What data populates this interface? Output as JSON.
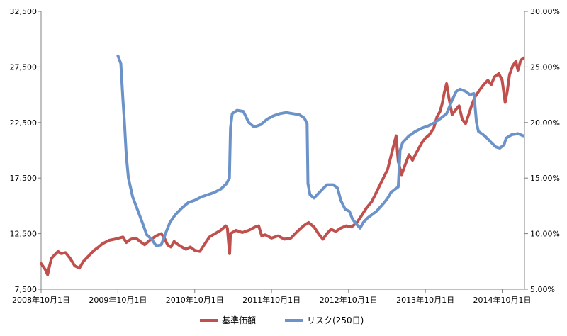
{
  "chart_data": {
    "type": "line",
    "x_ticks": [
      "2008年10月1日",
      "2009年10月1日",
      "2010年10月1日",
      "2011年10月1日",
      "2012年10月1日",
      "2013年10月1日",
      "2014年10月1日"
    ],
    "xlim": [
      "2008-10-01",
      "2015-01-15"
    ],
    "y_left": {
      "ticks": [
        "7,500",
        "12,500",
        "17,500",
        "22,500",
        "27,500",
        "32,500"
      ],
      "lim": [
        7500,
        32500
      ]
    },
    "y_right": {
      "ticks": [
        "5.00%",
        "10.00%",
        "15.00%",
        "20.00%",
        "25.00%",
        "30.00%"
      ],
      "lim": [
        5,
        30
      ]
    },
    "grid": false,
    "legend_position": "bottom",
    "series": [
      {
        "name": "基準価額",
        "axis": "left",
        "color": "#c0504d",
        "points": [
          [
            "2008-10-01",
            9800
          ],
          [
            "2008-10-20",
            9300
          ],
          [
            "2008-11-01",
            8800
          ],
          [
            "2008-11-10",
            9600
          ],
          [
            "2008-11-20",
            10300
          ],
          [
            "2008-12-05",
            10600
          ],
          [
            "2008-12-20",
            10900
          ],
          [
            "2009-01-05",
            10700
          ],
          [
            "2009-01-25",
            10800
          ],
          [
            "2009-02-15",
            10300
          ],
          [
            "2009-03-10",
            9600
          ],
          [
            "2009-04-01",
            9400
          ],
          [
            "2009-04-20",
            10000
          ],
          [
            "2009-05-15",
            10500
          ],
          [
            "2009-06-10",
            11000
          ],
          [
            "2009-07-01",
            11300
          ],
          [
            "2009-07-20",
            11600
          ],
          [
            "2009-08-20",
            11900
          ],
          [
            "2009-09-15",
            12000
          ],
          [
            "2009-10-05",
            12100
          ],
          [
            "2009-10-25",
            12200
          ],
          [
            "2009-11-10",
            11700
          ],
          [
            "2009-12-01",
            12000
          ],
          [
            "2009-12-25",
            12100
          ],
          [
            "2010-01-15",
            11800
          ],
          [
            "2010-02-05",
            11500
          ],
          [
            "2010-03-01",
            11900
          ],
          [
            "2010-04-01",
            12300
          ],
          [
            "2010-04-25",
            12500
          ],
          [
            "2010-05-10",
            12100
          ],
          [
            "2010-05-25",
            11500
          ],
          [
            "2010-06-10",
            11300
          ],
          [
            "2010-06-25",
            11800
          ],
          [
            "2010-07-15",
            11500
          ],
          [
            "2010-08-01",
            11300
          ],
          [
            "2010-08-20",
            11100
          ],
          [
            "2010-09-10",
            11300
          ],
          [
            "2010-10-01",
            11000
          ],
          [
            "2010-10-25",
            10900
          ],
          [
            "2010-11-15",
            11500
          ],
          [
            "2010-12-10",
            12200
          ],
          [
            "2011-01-05",
            12500
          ],
          [
            "2011-02-01",
            12800
          ],
          [
            "2011-02-25",
            13200
          ],
          [
            "2011-03-05",
            13000
          ],
          [
            "2011-03-12",
            11500
          ],
          [
            "2011-03-16",
            10700
          ],
          [
            "2011-03-20",
            12500
          ],
          [
            "2011-04-15",
            12800
          ],
          [
            "2011-05-15",
            12600
          ],
          [
            "2011-06-15",
            12800
          ],
          [
            "2011-07-15",
            13100
          ],
          [
            "2011-08-01",
            13200
          ],
          [
            "2011-08-15",
            12300
          ],
          [
            "2011-09-01",
            12400
          ],
          [
            "2011-10-01",
            12100
          ],
          [
            "2011-11-01",
            12300
          ],
          [
            "2011-12-01",
            12000
          ],
          [
            "2012-01-01",
            12100
          ],
          [
            "2012-02-01",
            12700
          ],
          [
            "2012-03-01",
            13200
          ],
          [
            "2012-03-25",
            13500
          ],
          [
            "2012-04-20",
            13100
          ],
          [
            "2012-05-15",
            12400
          ],
          [
            "2012-06-01",
            12000
          ],
          [
            "2012-06-20",
            12500
          ],
          [
            "2012-07-10",
            12900
          ],
          [
            "2012-08-01",
            12700
          ],
          [
            "2012-08-25",
            13000
          ],
          [
            "2012-09-20",
            13200
          ],
          [
            "2012-10-15",
            13100
          ],
          [
            "2012-11-10",
            13500
          ],
          [
            "2012-12-01",
            14100
          ],
          [
            "2012-12-25",
            14800
          ],
          [
            "2013-01-20",
            15400
          ],
          [
            "2013-02-15",
            16400
          ],
          [
            "2013-03-10",
            17300
          ],
          [
            "2013-04-05",
            18300
          ],
          [
            "2013-04-25",
            19800
          ],
          [
            "2013-05-15",
            21300
          ],
          [
            "2013-05-25",
            19000
          ],
          [
            "2013-06-10",
            17800
          ],
          [
            "2013-06-25",
            18600
          ],
          [
            "2013-07-15",
            19600
          ],
          [
            "2013-08-01",
            19100
          ],
          [
            "2013-08-20",
            19800
          ],
          [
            "2013-09-15",
            20700
          ],
          [
            "2013-10-01",
            21100
          ],
          [
            "2013-10-20",
            21400
          ],
          [
            "2013-11-10",
            22000
          ],
          [
            "2013-11-25",
            23000
          ],
          [
            "2013-12-10",
            23500
          ],
          [
            "2013-12-20",
            24200
          ],
          [
            "2013-12-30",
            25200
          ],
          [
            "2014-01-10",
            26000
          ],
          [
            "2014-01-20",
            24800
          ],
          [
            "2014-02-05",
            23200
          ],
          [
            "2014-02-20",
            23600
          ],
          [
            "2014-03-10",
            24000
          ],
          [
            "2014-03-25",
            22800
          ],
          [
            "2014-04-10",
            22400
          ],
          [
            "2014-04-25",
            23200
          ],
          [
            "2014-05-10",
            24100
          ],
          [
            "2014-05-25",
            24800
          ],
          [
            "2014-06-15",
            25400
          ],
          [
            "2014-07-05",
            25900
          ],
          [
            "2014-07-25",
            26300
          ],
          [
            "2014-08-10",
            25900
          ],
          [
            "2014-08-25",
            26600
          ],
          [
            "2014-09-15",
            26900
          ],
          [
            "2014-10-01",
            26300
          ],
          [
            "2014-10-15",
            24300
          ],
          [
            "2014-10-25",
            25300
          ],
          [
            "2014-11-05",
            26800
          ],
          [
            "2014-11-20",
            27600
          ],
          [
            "2014-12-05",
            28000
          ],
          [
            "2014-12-15",
            27200
          ],
          [
            "2014-12-28",
            28100
          ],
          [
            "2015-01-10",
            28300
          ]
        ]
      },
      {
        "name": "リスク(250日)",
        "axis": "right",
        "color": "#6b93c9",
        "points": [
          [
            "2009-10-01",
            26.0
          ],
          [
            "2009-10-15",
            25.3
          ],
          [
            "2009-10-25",
            22.0
          ],
          [
            "2009-11-01",
            20.0
          ],
          [
            "2009-11-10",
            17.0
          ],
          [
            "2009-11-20",
            15.0
          ],
          [
            "2009-12-10",
            13.3
          ],
          [
            "2010-01-05",
            12.0
          ],
          [
            "2010-01-25",
            11.0
          ],
          [
            "2010-02-15",
            9.9
          ],
          [
            "2010-03-10",
            9.5
          ],
          [
            "2010-04-01",
            8.9
          ],
          [
            "2010-04-25",
            9.0
          ],
          [
            "2010-05-15",
            10.0
          ],
          [
            "2010-06-05",
            11.0
          ],
          [
            "2010-07-01",
            11.7
          ],
          [
            "2010-08-01",
            12.3
          ],
          [
            "2010-09-01",
            12.8
          ],
          [
            "2010-10-01",
            13.0
          ],
          [
            "2010-11-01",
            13.3
          ],
          [
            "2010-12-01",
            13.5
          ],
          [
            "2011-01-01",
            13.7
          ],
          [
            "2011-02-01",
            14.0
          ],
          [
            "2011-03-01",
            14.5
          ],
          [
            "2011-03-15",
            15.0
          ],
          [
            "2011-03-20",
            19.5
          ],
          [
            "2011-03-28",
            20.8
          ],
          [
            "2011-04-20",
            21.1
          ],
          [
            "2011-05-20",
            21.0
          ],
          [
            "2011-06-15",
            20.0
          ],
          [
            "2011-07-10",
            19.6
          ],
          [
            "2011-08-10",
            19.8
          ],
          [
            "2011-09-10",
            20.3
          ],
          [
            "2011-10-10",
            20.6
          ],
          [
            "2011-11-10",
            20.8
          ],
          [
            "2011-12-10",
            20.9
          ],
          [
            "2012-01-10",
            20.8
          ],
          [
            "2012-02-10",
            20.7
          ],
          [
            "2012-03-05",
            20.4
          ],
          [
            "2012-03-18",
            19.9
          ],
          [
            "2012-03-22",
            14.5
          ],
          [
            "2012-04-01",
            13.5
          ],
          [
            "2012-04-20",
            13.2
          ],
          [
            "2012-05-20",
            13.8
          ],
          [
            "2012-06-20",
            14.4
          ],
          [
            "2012-07-20",
            14.4
          ],
          [
            "2012-08-10",
            14.1
          ],
          [
            "2012-08-25",
            13.0
          ],
          [
            "2012-09-15",
            12.2
          ],
          [
            "2012-10-05",
            12.0
          ],
          [
            "2012-10-20",
            11.3
          ],
          [
            "2012-11-10",
            10.8
          ],
          [
            "2012-11-25",
            10.5
          ],
          [
            "2012-12-10",
            11.0
          ],
          [
            "2012-12-30",
            11.4
          ],
          [
            "2013-01-20",
            11.7
          ],
          [
            "2013-02-10",
            12.0
          ],
          [
            "2013-03-01",
            12.4
          ],
          [
            "2013-03-20",
            12.8
          ],
          [
            "2013-04-05",
            13.2
          ],
          [
            "2013-04-20",
            13.7
          ],
          [
            "2013-05-10",
            14.0
          ],
          [
            "2013-05-25",
            14.2
          ],
          [
            "2013-06-03",
            17.5
          ],
          [
            "2013-06-15",
            18.2
          ],
          [
            "2013-07-15",
            18.8
          ],
          [
            "2013-08-15",
            19.2
          ],
          [
            "2013-09-15",
            19.5
          ],
          [
            "2013-10-15",
            19.7
          ],
          [
            "2013-11-15",
            20.0
          ],
          [
            "2013-12-15",
            20.4
          ],
          [
            "2014-01-10",
            20.8
          ],
          [
            "2014-02-05",
            22.0
          ],
          [
            "2014-02-25",
            22.8
          ],
          [
            "2014-03-15",
            23.0
          ],
          [
            "2014-04-10",
            22.8
          ],
          [
            "2014-05-01",
            22.5
          ],
          [
            "2014-05-20",
            22.6
          ],
          [
            "2014-06-01",
            20.0
          ],
          [
            "2014-06-10",
            19.2
          ],
          [
            "2014-07-10",
            18.8
          ],
          [
            "2014-08-10",
            18.2
          ],
          [
            "2014-09-01",
            17.8
          ],
          [
            "2014-09-20",
            17.7
          ],
          [
            "2014-10-10",
            18.0
          ],
          [
            "2014-10-20",
            18.6
          ],
          [
            "2014-11-15",
            18.9
          ],
          [
            "2014-12-15",
            19.0
          ],
          [
            "2015-01-10",
            18.8
          ]
        ]
      }
    ]
  }
}
